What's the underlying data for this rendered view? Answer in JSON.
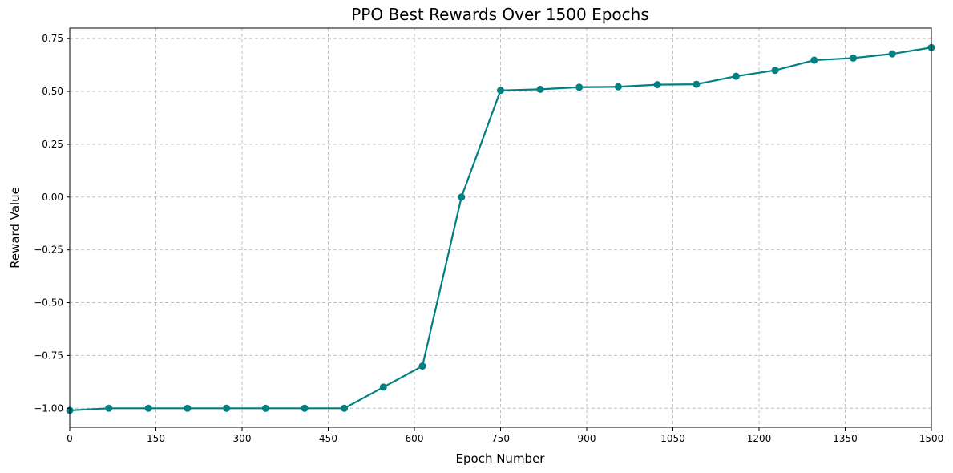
{
  "chart_data": {
    "type": "line",
    "title": "PPO Best Rewards Over 1500 Epochs",
    "xlabel": "Epoch Number",
    "ylabel": "Reward Value",
    "xlim": [
      0,
      1500
    ],
    "ylim": [
      -1.09,
      0.8
    ],
    "x_ticks": [
      0,
      150,
      300,
      450,
      600,
      750,
      900,
      1050,
      1200,
      1350,
      1500
    ],
    "x_tick_labels": [
      "0",
      "150",
      "300",
      "450",
      "600",
      "750",
      "900",
      "1050",
      "1200",
      "1350",
      "1500"
    ],
    "y_ticks": [
      -1.0,
      -0.75,
      -0.5,
      -0.25,
      0.0,
      0.25,
      0.5,
      0.75
    ],
    "y_tick_labels": [
      "−1.00",
      "−0.75",
      "−0.50",
      "−0.25",
      "0.00",
      "0.25",
      "0.50",
      "0.75"
    ],
    "grid": true,
    "grid_style": "dashed",
    "line_color": "#008080",
    "series": [
      {
        "x": [
          0,
          68,
          137,
          205,
          273,
          341,
          409,
          478,
          546,
          614,
          682,
          750,
          819,
          887,
          955,
          1023,
          1091,
          1160,
          1228,
          1296,
          1364,
          1432,
          1500
        ],
        "y": [
          -1.01,
          -1.0,
          -1.0,
          -1.0,
          -1.0,
          -1.0,
          -1.0,
          -1.0,
          -0.9,
          -0.8,
          0.0,
          0.505,
          0.51,
          0.52,
          0.522,
          0.532,
          0.534,
          0.572,
          0.6,
          0.648,
          0.658,
          0.678,
          0.708
        ]
      }
    ]
  }
}
